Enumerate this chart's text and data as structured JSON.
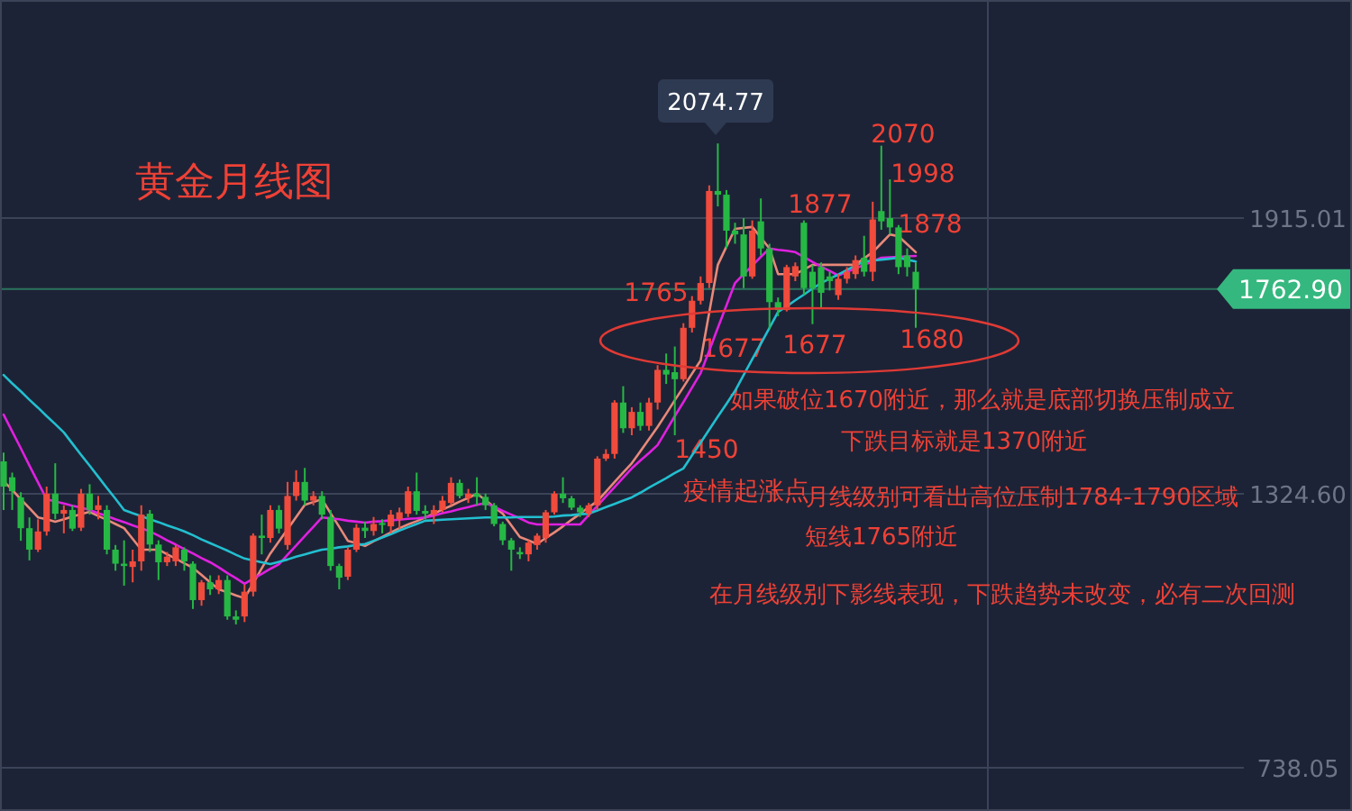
{
  "chart_data": {
    "type": "candlestick",
    "title": "黄金月线图",
    "categories": [
      null,
      null,
      null,
      null,
      null,
      null,
      null,
      null,
      null,
      null,
      null,
      null,
      null,
      null,
      null,
      null,
      null,
      null,
      null,
      null,
      null,
      null,
      null,
      null,
      null,
      null,
      null,
      null,
      null,
      null,
      null,
      null,
      null,
      null,
      null,
      null,
      null,
      null,
      null,
      null,
      null,
      null,
      null,
      null,
      null,
      null,
      null,
      null,
      null,
      null,
      null,
      null,
      null,
      null,
      null,
      null,
      null,
      null,
      null,
      null,
      null,
      null,
      null,
      null,
      null,
      null,
      null,
      null,
      null,
      null,
      null,
      null,
      null,
      null,
      null,
      null,
      null,
      null,
      null,
      null,
      null,
      null,
      null,
      null,
      null,
      null,
      null,
      null,
      null,
      null,
      null,
      null,
      null,
      null,
      null,
      null,
      null,
      null,
      null,
      null,
      null,
      null,
      null,
      null,
      null,
      null,
      null
    ],
    "ohlc": [
      [
        1394,
        1413,
        1290,
        1340
      ],
      [
        1360,
        1370,
        1290,
        1330
      ],
      [
        1317,
        1328,
        1224,
        1251
      ],
      [
        1251,
        1274,
        1182,
        1205
      ],
      [
        1205,
        1270,
        1200,
        1244
      ],
      [
        1244,
        1340,
        1235,
        1325
      ],
      [
        1325,
        1390,
        1270,
        1282
      ],
      [
        1282,
        1300,
        1240,
        1290
      ],
      [
        1290,
        1300,
        1245,
        1250
      ],
      [
        1252,
        1335,
        1245,
        1325
      ],
      [
        1325,
        1345,
        1280,
        1290
      ],
      [
        1290,
        1320,
        1270,
        1300
      ],
      [
        1290,
        1300,
        1195,
        1205
      ],
      [
        1205,
        1215,
        1160,
        1175
      ],
      [
        1175,
        1225,
        1128,
        1170
      ],
      [
        1168,
        1205,
        1135,
        1180
      ],
      [
        1180,
        1300,
        1160,
        1280
      ],
      [
        1282,
        1290,
        1200,
        1216
      ],
      [
        1216,
        1225,
        1140,
        1178
      ],
      [
        1178,
        1200,
        1170,
        1190
      ],
      [
        1180,
        1215,
        1170,
        1210
      ],
      [
        1205,
        1210,
        1160,
        1180
      ],
      [
        1175,
        1180,
        1078,
        1097
      ],
      [
        1097,
        1140,
        1085,
        1135
      ],
      [
        1135,
        1150,
        1108,
        1120
      ],
      [
        1120,
        1150,
        1110,
        1140
      ],
      [
        1140,
        1150,
        1055,
        1062
      ],
      [
        1062,
        1075,
        1045,
        1055
      ],
      [
        1062,
        1130,
        1050,
        1115
      ],
      [
        1115,
        1240,
        1105,
        1235
      ],
      [
        1235,
        1280,
        1195,
        1230
      ],
      [
        1230,
        1300,
        1220,
        1290
      ],
      [
        1290,
        1300,
        1240,
        1250
      ],
      [
        1215,
        1350,
        1205,
        1320
      ],
      [
        1320,
        1375,
        1310,
        1350
      ],
      [
        1350,
        1380,
        1300,
        1310
      ],
      [
        1310,
        1330,
        1300,
        1320
      ],
      [
        1320,
        1330,
        1270,
        1280
      ],
      [
        1275,
        1290,
        1160,
        1170
      ],
      [
        1170,
        1175,
        1120,
        1145
      ],
      [
        1147,
        1210,
        1140,
        1205
      ],
      [
        1205,
        1260,
        1200,
        1252
      ],
      [
        1252,
        1265,
        1230,
        1245
      ],
      [
        1245,
        1275,
        1235,
        1260
      ],
      [
        1262,
        1270,
        1240,
        1258
      ],
      [
        1255,
        1290,
        1240,
        1280
      ],
      [
        1270,
        1295,
        1250,
        1285
      ],
      [
        1282,
        1340,
        1275,
        1330
      ],
      [
        1330,
        1370,
        1280,
        1288
      ],
      [
        1288,
        1300,
        1270,
        1282
      ],
      [
        1280,
        1300,
        1260,
        1290
      ],
      [
        1290,
        1320,
        1285,
        1310
      ],
      [
        1305,
        1360,
        1300,
        1348
      ],
      [
        1348,
        1355,
        1315,
        1320
      ],
      [
        1315,
        1335,
        1305,
        1325
      ],
      [
        1325,
        1360,
        1300,
        1318
      ],
      [
        1318,
        1325,
        1290,
        1300
      ],
      [
        1300,
        1305,
        1255,
        1260
      ],
      [
        1260,
        1265,
        1215,
        1225
      ],
      [
        1225,
        1230,
        1160,
        1205
      ],
      [
        1200,
        1210,
        1185,
        1195
      ],
      [
        1195,
        1225,
        1180,
        1220
      ],
      [
        1215,
        1240,
        1205,
        1235
      ],
      [
        1230,
        1290,
        1220,
        1285
      ],
      [
        1285,
        1330,
        1280,
        1325
      ],
      [
        1325,
        1360,
        1305,
        1315
      ],
      [
        1315,
        1320,
        1290,
        1295
      ],
      [
        1295,
        1300,
        1275,
        1285
      ],
      [
        1282,
        1305,
        1275,
        1300
      ],
      [
        1300,
        1405,
        1290,
        1400
      ],
      [
        1400,
        1420,
        1395,
        1410
      ],
      [
        1410,
        1525,
        1400,
        1520
      ],
      [
        1520,
        1555,
        1455,
        1465
      ],
      [
        1465,
        1510,
        1450,
        1500
      ],
      [
        1500,
        1520,
        1460,
        1470
      ],
      [
        1470,
        1530,
        1460,
        1520
      ],
      [
        1520,
        1600,
        1505,
        1590
      ],
      [
        1590,
        1625,
        1560,
        1580
      ],
      [
        1585,
        1640,
        1450,
        1570
      ],
      [
        1570,
        1690,
        1565,
        1680
      ],
      [
        1680,
        1748,
        1670,
        1738
      ],
      [
        1738,
        1790,
        1730,
        1776
      ],
      [
        1776,
        1985,
        1765,
        1973
      ],
      [
        1973,
        2074.77,
        1940,
        1965
      ],
      [
        1965,
        1975,
        1850,
        1888
      ],
      [
        1888,
        1905,
        1860,
        1880
      ],
      [
        1880,
        1915,
        1765,
        1790
      ],
      [
        1790,
        1910,
        1785,
        1888
      ],
      [
        1908,
        1957,
        1835,
        1850
      ],
      [
        1850,
        1860,
        1677,
        1735
      ],
      [
        1735,
        1745,
        1705,
        1718
      ],
      [
        1718,
        1815,
        1715,
        1810
      ],
      [
        1790,
        1820,
        1780,
        1812
      ],
      [
        1905,
        1910,
        1750,
        1765
      ],
      [
        1800,
        1815,
        1688,
        1765
      ],
      [
        1810,
        1820,
        1720,
        1755
      ],
      [
        1790,
        1800,
        1760,
        1780
      ],
      [
        1750,
        1795,
        1740,
        1785
      ],
      [
        1785,
        1810,
        1775,
        1800
      ],
      [
        1795,
        1835,
        1785,
        1825
      ],
      [
        1830,
        1877,
        1790,
        1800
      ],
      [
        1800,
        1950,
        1780,
        1912
      ],
      [
        1930,
        2070,
        1890,
        1908
      ],
      [
        1915,
        1998,
        1880,
        1895
      ],
      [
        1895,
        1900,
        1795,
        1810
      ],
      [
        1835,
        1850,
        1790,
        1810
      ],
      [
        1800,
        1820,
        1680,
        1762.9
      ]
    ],
    "series": [
      {
        "type": "line",
        "color": "#e8897a",
        "values": [
          1352,
          1333,
          1313,
          1294,
          1274,
          1270,
          1265,
          1270,
          1276,
          1281,
          1286,
          1277,
          1269,
          1260,
          1251,
          1228,
          1205,
          1205,
          1205,
          1195,
          1186,
          1176,
          1166,
          1151,
          1135,
          1120,
          1114,
          1107,
          1101,
          1133,
          1165,
          1197,
          1223,
          1249,
          1275,
          1301,
          1307,
          1313,
          1283,
          1254,
          1224,
          1219,
          1213,
          1223,
          1232,
          1242,
          1251,
          1259,
          1266,
          1274,
          1282,
          1291,
          1299,
          1308,
          1316,
          1325,
          1311,
          1296,
          1282,
          1257,
          1232,
          1225,
          1217,
          1230,
          1242,
          1255,
          1269,
          1282,
          1296,
          1309,
          1329,
          1350,
          1370,
          1390,
          1416,
          1442,
          1468,
          1496,
          1525,
          1553,
          1582,
          1610,
          1713,
          1815,
          1854,
          1892,
          1894,
          1896,
          1873,
          1850,
          1795,
          1795,
          1795,
          1805,
          1815,
          1815,
          1815,
          1815,
          1815,
          1815,
          1829,
          1842,
          1861,
          1880,
          1876,
          1859,
          1842
        ]
      },
      {
        "type": "line",
        "color": "#e020e0",
        "values": [
          1494,
          1458,
          1422,
          1385,
          1349,
          1313,
          1308,
          1304,
          1299,
          1295,
          1290,
          1283,
          1277,
          1270,
          1264,
          1257,
          1251,
          1244,
          1235,
          1225,
          1216,
          1206,
          1197,
          1187,
          1178,
          1167,
          1155,
          1144,
          1132,
          1143,
          1153,
          1164,
          1174,
          1194,
          1214,
          1234,
          1254,
          1274,
          1272,
          1270,
          1267,
          1265,
          1263,
          1265,
          1266,
          1268,
          1269,
          1271,
          1272,
          1274,
          1278,
          1283,
          1287,
          1292,
          1296,
          1301,
          1305,
          1297,
          1288,
          1280,
          1272,
          1263,
          1259,
          1259,
          1259,
          1259,
          1259,
          1259,
          1279,
          1299,
          1319,
          1339,
          1359,
          1379,
          1396,
          1412,
          1429,
          1460,
          1491,
          1521,
          1552,
          1583,
          1631,
          1680,
          1728,
          1776,
          1795,
          1813,
          1832,
          1850,
          1847,
          1845,
          1842,
          1832,
          1821,
          1811,
          1802,
          1792,
          1800,
          1807,
          1815,
          1822,
          1830,
          1831,
          1832,
          1833,
          1834
        ]
      },
      {
        "type": "line",
        "color": "#22bfd0",
        "values": [
          1579,
          1561,
          1544,
          1526,
          1509,
          1491,
          1474,
          1456,
          1432,
          1408,
          1385,
          1361,
          1337,
          1314,
          1290,
          1283,
          1277,
          1270,
          1264,
          1257,
          1251,
          1244,
          1236,
          1227,
          1219,
          1211,
          1203,
          1194,
          1186,
          1182,
          1178,
          1174,
          1179,
          1184,
          1190,
          1195,
          1200,
          1205,
          1207,
          1210,
          1212,
          1215,
          1217,
          1224,
          1231,
          1238,
          1246,
          1253,
          1260,
          1267,
          1268,
          1269,
          1270,
          1271,
          1272,
          1273,
          1274,
          1274,
          1274,
          1274,
          1275,
          1275,
          1275,
          1275,
          1276,
          1278,
          1279,
          1281,
          1282,
          1289,
          1296,
          1303,
          1310,
          1317,
          1327,
          1338,
          1348,
          1358,
          1369,
          1379,
          1407,
          1434,
          1462,
          1490,
          1517,
          1545,
          1579,
          1613,
          1646,
          1680,
          1714,
          1726,
          1739,
          1751,
          1764,
          1776,
          1785,
          1794,
          1804,
          1813,
          1822,
          1824,
          1826,
          1828,
          1830,
          1826,
          1822
        ]
      }
    ],
    "ylim": [
      645.43,
      2381.95
    ],
    "yticks": [
      1915.01,
      {
        "value": 1324.6,
        "label": "1324.60"
      },
      738.05
    ],
    "grid": "y",
    "ref_lines": [
      {
        "axis": "y",
        "value": 1762.9,
        "label": "1762.90",
        "color": "#35b87f"
      }
    ],
    "annotations": [
      "2074.77",
      "2070",
      "1998",
      "1877",
      "1878",
      "1765",
      "1677",
      "1677",
      "1680",
      "1450",
      "疫情起涨点",
      "如果破位1670附近，那么就是底部切换压制成立",
      "下跌目标就是1370附近",
      "月线级别可看出高位压制1784-1790区域",
      "短线1765附近",
      "在月线级别下影线表现，下跌趋势未改变，必有二次回测"
    ]
  }
}
